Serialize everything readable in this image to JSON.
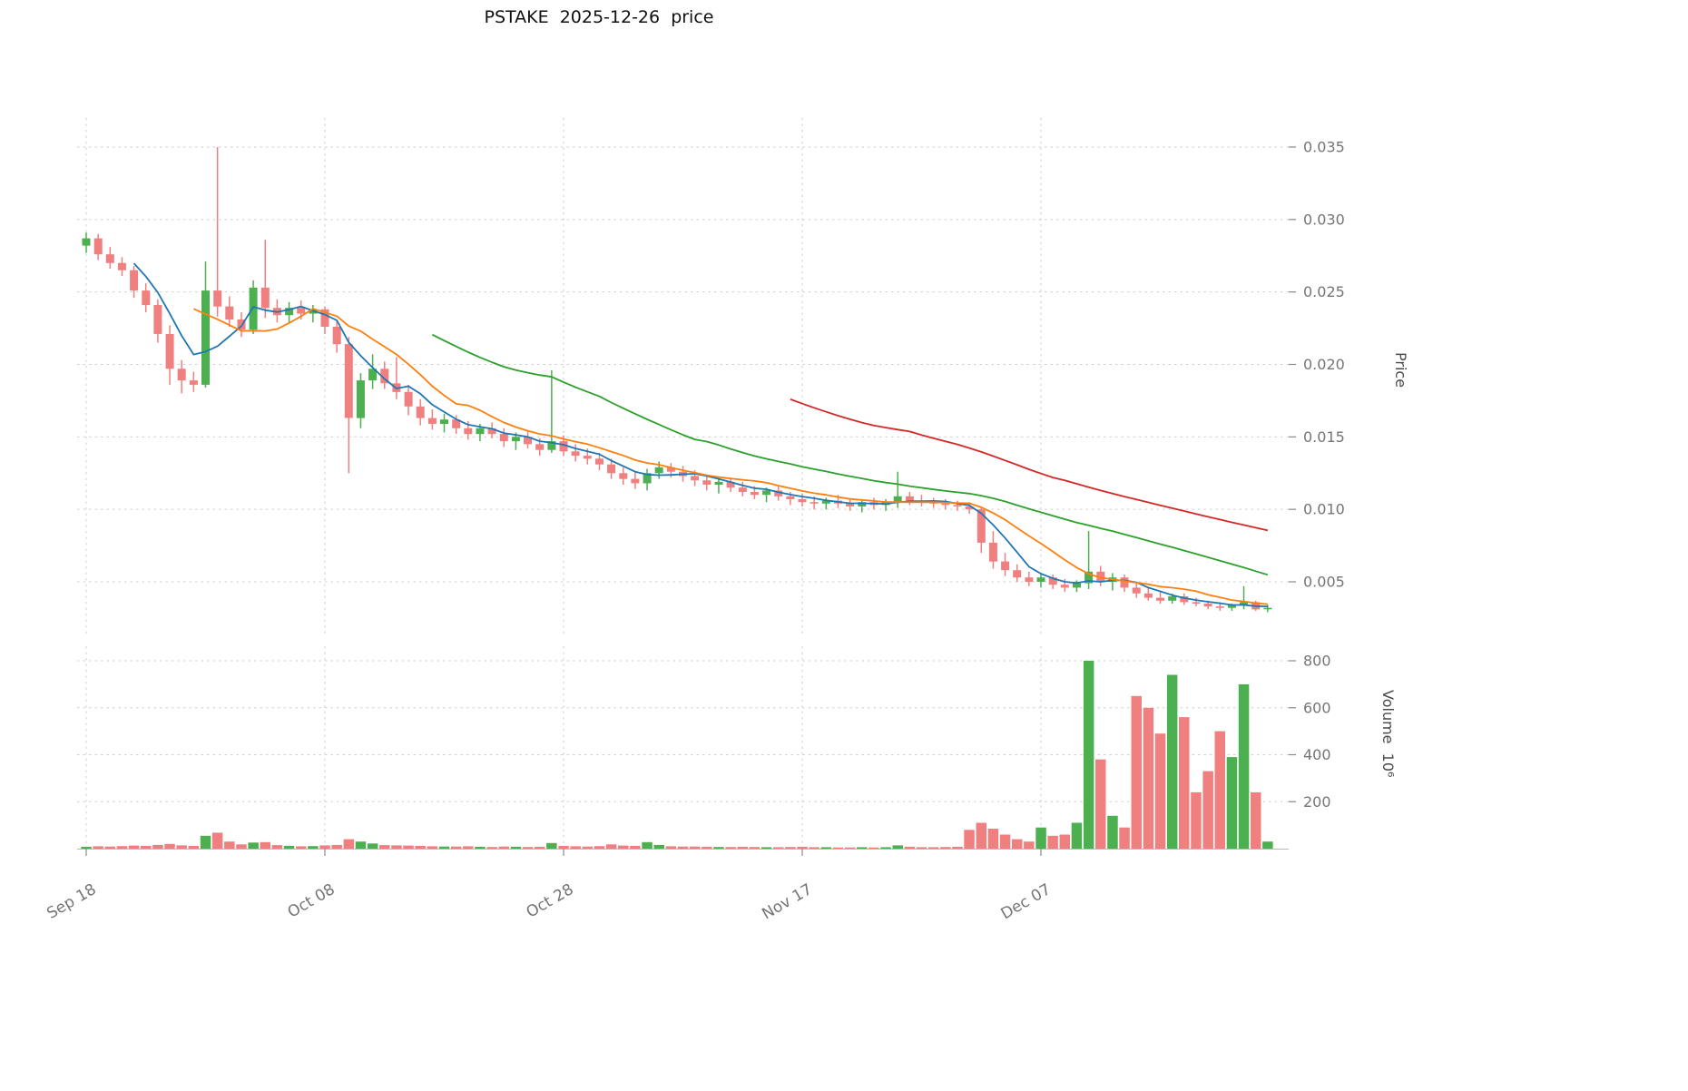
{
  "chart_data": {
    "type": "candlestick",
    "title": "PSTAKE  2025-12-26  price",
    "symbol": "PSTAKE",
    "as_of_date": "2025-12-26",
    "grid": true,
    "legend": false,
    "price_axis": {
      "label": "Price",
      "side": "right",
      "tick_values": [
        0.005,
        0.01,
        0.015,
        0.02,
        0.025,
        0.03,
        0.035
      ],
      "tick_labels": [
        "0.005",
        "0.010",
        "0.015",
        "0.020",
        "0.025",
        "0.030",
        "0.035"
      ],
      "range": [
        0.0013,
        0.037
      ]
    },
    "volume_axis": {
      "label": "Volume  10⁶",
      "side": "right",
      "tick_values": [
        200,
        400,
        600,
        800
      ],
      "tick_labels": [
        "200",
        "400",
        "600",
        "800"
      ],
      "range": [
        0,
        860
      ],
      "unit": "millions"
    },
    "x_axis": {
      "tick_indices": [
        0,
        20,
        40,
        60,
        80
      ],
      "tick_labels": [
        "Sep 18",
        "Oct 08",
        "Oct 28",
        "Nov 17",
        "Dec 07"
      ]
    },
    "moving_averages": [
      {
        "period": 5,
        "color": "#1f77b4"
      },
      {
        "period": 10,
        "color": "#ff7f0e"
      },
      {
        "period": 30,
        "color": "#2ca02c"
      },
      {
        "period": 60,
        "color": "#d62728"
      }
    ],
    "colors": {
      "up": "#4caf50",
      "down": "#f08080",
      "grid": "#cfcfcf",
      "text": "#757575",
      "title": "#101010"
    },
    "columns": [
      "date",
      "open",
      "high",
      "low",
      "close",
      "volume_millions"
    ],
    "candles": [
      [
        "2025-09-18",
        0.0282,
        0.0291,
        0.0277,
        0.0287,
        8
      ],
      [
        "2025-09-19",
        0.0287,
        0.029,
        0.0272,
        0.0276,
        10
      ],
      [
        "2025-09-20",
        0.0276,
        0.0281,
        0.0266,
        0.027,
        9
      ],
      [
        "2025-09-21",
        0.027,
        0.0274,
        0.0261,
        0.0265,
        11
      ],
      [
        "2025-09-22",
        0.0265,
        0.0268,
        0.0246,
        0.0251,
        13
      ],
      [
        "2025-09-23",
        0.0251,
        0.0256,
        0.0236,
        0.0241,
        12
      ],
      [
        "2025-09-24",
        0.0241,
        0.0245,
        0.0215,
        0.0221,
        16
      ],
      [
        "2025-09-25",
        0.0221,
        0.0227,
        0.0186,
        0.0197,
        20
      ],
      [
        "2025-09-26",
        0.0197,
        0.0203,
        0.018,
        0.0189,
        14
      ],
      [
        "2025-09-27",
        0.0189,
        0.0195,
        0.0181,
        0.0186,
        12
      ],
      [
        "2025-09-28",
        0.0186,
        0.0271,
        0.0184,
        0.0251,
        55
      ],
      [
        "2025-09-29",
        0.0251,
        0.035,
        0.0233,
        0.024,
        68
      ],
      [
        "2025-09-30",
        0.024,
        0.0247,
        0.0226,
        0.0231,
        30
      ],
      [
        "2025-10-01",
        0.0231,
        0.0236,
        0.0219,
        0.0224,
        18
      ],
      [
        "2025-10-02",
        0.0224,
        0.0258,
        0.0221,
        0.0253,
        26
      ],
      [
        "2025-10-03",
        0.0253,
        0.0286,
        0.0232,
        0.0239,
        28
      ],
      [
        "2025-10-04",
        0.0239,
        0.0245,
        0.0229,
        0.0234,
        15
      ],
      [
        "2025-10-05",
        0.0234,
        0.0243,
        0.0229,
        0.0239,
        12
      ],
      [
        "2025-10-06",
        0.0239,
        0.0244,
        0.0231,
        0.0235,
        10
      ],
      [
        "2025-10-07",
        0.0235,
        0.0241,
        0.0229,
        0.0238,
        11
      ],
      [
        "2025-10-08",
        0.0238,
        0.024,
        0.0221,
        0.0226,
        14
      ],
      [
        "2025-10-09",
        0.0226,
        0.0231,
        0.0208,
        0.0214,
        16
      ],
      [
        "2025-10-10",
        0.0214,
        0.0219,
        0.0125,
        0.0163,
        40
      ],
      [
        "2025-10-11",
        0.0163,
        0.0194,
        0.0156,
        0.0189,
        30
      ],
      [
        "2025-10-12",
        0.0189,
        0.0207,
        0.0183,
        0.0197,
        22
      ],
      [
        "2025-10-13",
        0.0197,
        0.0202,
        0.0183,
        0.0187,
        15
      ],
      [
        "2025-10-14",
        0.0187,
        0.0205,
        0.0176,
        0.0181,
        14
      ],
      [
        "2025-10-15",
        0.0181,
        0.0186,
        0.0165,
        0.0171,
        13
      ],
      [
        "2025-10-16",
        0.0171,
        0.0176,
        0.0158,
        0.0163,
        12
      ],
      [
        "2025-10-17",
        0.0163,
        0.0169,
        0.0155,
        0.0159,
        10
      ],
      [
        "2025-10-18",
        0.0159,
        0.0166,
        0.0153,
        0.0162,
        9
      ],
      [
        "2025-10-19",
        0.0162,
        0.0165,
        0.0152,
        0.0156,
        9
      ],
      [
        "2025-10-20",
        0.0156,
        0.0161,
        0.0148,
        0.0152,
        10
      ],
      [
        "2025-10-21",
        0.0152,
        0.0159,
        0.0147,
        0.0156,
        8
      ],
      [
        "2025-10-22",
        0.0156,
        0.016,
        0.0149,
        0.0152,
        7
      ],
      [
        "2025-10-23",
        0.0152,
        0.0156,
        0.0143,
        0.0147,
        9
      ],
      [
        "2025-10-24",
        0.0147,
        0.0153,
        0.0141,
        0.015,
        8
      ],
      [
        "2025-10-25",
        0.015,
        0.0154,
        0.0142,
        0.0145,
        7
      ],
      [
        "2025-10-26",
        0.0145,
        0.0149,
        0.0137,
        0.0141,
        8
      ],
      [
        "2025-10-27",
        0.0141,
        0.0196,
        0.0139,
        0.0147,
        24
      ],
      [
        "2025-10-28",
        0.0147,
        0.0151,
        0.0137,
        0.014,
        12
      ],
      [
        "2025-10-29",
        0.014,
        0.0145,
        0.0133,
        0.0137,
        10
      ],
      [
        "2025-10-30",
        0.0137,
        0.0142,
        0.0131,
        0.0135,
        9
      ],
      [
        "2025-10-31",
        0.0135,
        0.0139,
        0.0127,
        0.0131,
        11
      ],
      [
        "2025-11-01",
        0.0131,
        0.0135,
        0.0121,
        0.0125,
        18
      ],
      [
        "2025-11-02",
        0.0125,
        0.0129,
        0.0117,
        0.0121,
        13
      ],
      [
        "2025-11-03",
        0.0121,
        0.0126,
        0.0114,
        0.0118,
        12
      ],
      [
        "2025-11-04",
        0.0118,
        0.0128,
        0.0113,
        0.0125,
        28
      ],
      [
        "2025-11-05",
        0.0125,
        0.0133,
        0.0121,
        0.0129,
        16
      ],
      [
        "2025-11-06",
        0.0129,
        0.0132,
        0.0122,
        0.0126,
        10
      ],
      [
        "2025-11-07",
        0.0126,
        0.013,
        0.0119,
        0.0123,
        9
      ],
      [
        "2025-11-08",
        0.0123,
        0.0127,
        0.0116,
        0.012,
        9
      ],
      [
        "2025-11-09",
        0.012,
        0.0124,
        0.0113,
        0.0117,
        8
      ],
      [
        "2025-11-10",
        0.0117,
        0.0121,
        0.0111,
        0.0119,
        7
      ],
      [
        "2025-11-11",
        0.0119,
        0.0122,
        0.0112,
        0.0115,
        7
      ],
      [
        "2025-11-12",
        0.0115,
        0.0119,
        0.0109,
        0.0112,
        8
      ],
      [
        "2025-11-13",
        0.0112,
        0.0116,
        0.0107,
        0.011,
        7
      ],
      [
        "2025-11-14",
        0.011,
        0.0115,
        0.0105,
        0.0113,
        6
      ],
      [
        "2025-11-15",
        0.0113,
        0.0116,
        0.0106,
        0.0109,
        6
      ],
      [
        "2025-11-16",
        0.0109,
        0.0112,
        0.0103,
        0.0107,
        7
      ],
      [
        "2025-11-17",
        0.0107,
        0.0111,
        0.0102,
        0.0105,
        8
      ],
      [
        "2025-11-18",
        0.0105,
        0.0109,
        0.01,
        0.0104,
        6
      ],
      [
        "2025-11-19",
        0.0104,
        0.0108,
        0.01,
        0.0106,
        6
      ],
      [
        "2025-11-20",
        0.0106,
        0.011,
        0.0101,
        0.0104,
        5
      ],
      [
        "2025-11-21",
        0.0104,
        0.0107,
        0.0099,
        0.0102,
        5
      ],
      [
        "2025-11-22",
        0.0102,
        0.0106,
        0.0098,
        0.0105,
        6
      ],
      [
        "2025-11-23",
        0.0105,
        0.0108,
        0.01,
        0.0103,
        5
      ],
      [
        "2025-11-24",
        0.0103,
        0.0107,
        0.0099,
        0.0105,
        6
      ],
      [
        "2025-11-25",
        0.0105,
        0.0126,
        0.0101,
        0.0109,
        14
      ],
      [
        "2025-11-26",
        0.0109,
        0.0112,
        0.0103,
        0.0106,
        8
      ],
      [
        "2025-11-27",
        0.0106,
        0.011,
        0.0102,
        0.0105,
        6
      ],
      [
        "2025-11-28",
        0.0105,
        0.0108,
        0.0101,
        0.0104,
        6
      ],
      [
        "2025-11-29",
        0.0104,
        0.0107,
        0.01,
        0.0103,
        7
      ],
      [
        "2025-11-30",
        0.0103,
        0.0106,
        0.0099,
        0.0102,
        8
      ],
      [
        "2025-12-01",
        0.0102,
        0.0105,
        0.0097,
        0.01,
        80
      ],
      [
        "2025-12-02",
        0.01,
        0.0102,
        0.007,
        0.0077,
        110
      ],
      [
        "2025-12-03",
        0.0077,
        0.0085,
        0.0059,
        0.0064,
        85
      ],
      [
        "2025-12-04",
        0.0064,
        0.007,
        0.0054,
        0.0058,
        60
      ],
      [
        "2025-12-05",
        0.0058,
        0.0062,
        0.005,
        0.0053,
        40
      ],
      [
        "2025-12-06",
        0.0053,
        0.0057,
        0.0047,
        0.005,
        30
      ],
      [
        "2025-12-07",
        0.005,
        0.0056,
        0.0046,
        0.0053,
        90
      ],
      [
        "2025-12-08",
        0.0053,
        0.0055,
        0.0045,
        0.0048,
        55
      ],
      [
        "2025-12-09",
        0.0048,
        0.0052,
        0.0043,
        0.0046,
        60
      ],
      [
        "2025-12-10",
        0.0046,
        0.0051,
        0.0043,
        0.0049,
        110
      ],
      [
        "2025-12-11",
        0.0049,
        0.0085,
        0.0045,
        0.0057,
        800
      ],
      [
        "2025-12-12",
        0.0057,
        0.0061,
        0.0047,
        0.005,
        380
      ],
      [
        "2025-12-13",
        0.005,
        0.0056,
        0.0044,
        0.0053,
        140
      ],
      [
        "2025-12-14",
        0.0053,
        0.0055,
        0.0043,
        0.0046,
        90
      ],
      [
        "2025-12-15",
        0.0046,
        0.0049,
        0.0039,
        0.0042,
        650
      ],
      [
        "2025-12-16",
        0.0042,
        0.0046,
        0.0037,
        0.0039,
        600
      ],
      [
        "2025-12-17",
        0.0039,
        0.0043,
        0.0035,
        0.0037,
        490
      ],
      [
        "2025-12-18",
        0.0037,
        0.0042,
        0.0035,
        0.004,
        740
      ],
      [
        "2025-12-19",
        0.004,
        0.0042,
        0.0034,
        0.0036,
        560
      ],
      [
        "2025-12-20",
        0.0036,
        0.0039,
        0.0033,
        0.0035,
        240
      ],
      [
        "2025-12-21",
        0.0035,
        0.0037,
        0.0031,
        0.0033,
        330
      ],
      [
        "2025-12-22",
        0.0033,
        0.0036,
        0.003,
        0.0032,
        500
      ],
      [
        "2025-12-23",
        0.0032,
        0.0035,
        0.003,
        0.0034,
        390
      ],
      [
        "2025-12-24",
        0.0034,
        0.0047,
        0.0031,
        0.0036,
        700
      ],
      [
        "2025-12-25",
        0.0036,
        0.0037,
        0.003,
        0.0031,
        240
      ],
      [
        "2025-12-26",
        0.0031,
        0.0034,
        0.0029,
        0.0032,
        30
      ]
    ]
  }
}
